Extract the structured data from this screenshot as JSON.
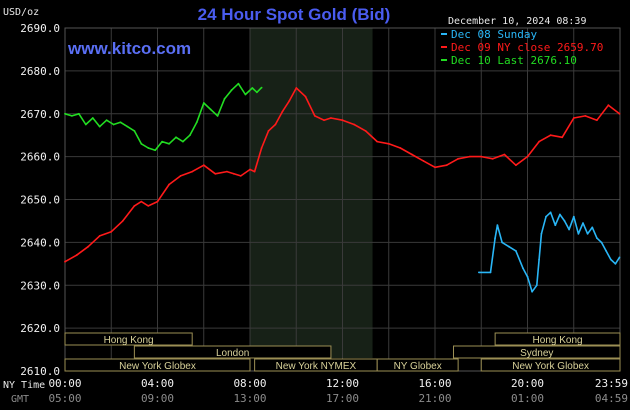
{
  "header": {
    "title": "24 Hour Spot Gold (Bid)",
    "unit": "USD/oz",
    "timestamp": "December 10, 2024 08:39",
    "brand": "www.kitco.com"
  },
  "axis": {
    "nytime_label": "NY Time",
    "gmt_label": "GMT"
  },
  "sessions": [
    {
      "name": "Hong Kong",
      "start": 0.0,
      "end": 5.5,
      "row": 0
    },
    {
      "name": "Hong Kong",
      "start": 18.6,
      "end": 24.0,
      "row": 0
    },
    {
      "name": "London",
      "start": 3.0,
      "end": 11.5,
      "row": 1
    },
    {
      "name": "Sydney",
      "start": 16.8,
      "end": 24.0,
      "row": 1
    },
    {
      "name": "New York Globex",
      "start": 0.0,
      "end": 8.0,
      "row": 2
    },
    {
      "name": "New York NYMEX",
      "start": 8.2,
      "end": 13.5,
      "row": 2
    },
    {
      "name": "NY Globex",
      "start": 13.5,
      "end": 17.0,
      "row": 2
    },
    {
      "name": "New York Globex",
      "start": 18.0,
      "end": 24.0,
      "row": 2
    }
  ],
  "chart_data": {
    "type": "line",
    "ylim": [
      2610,
      2690
    ],
    "yticks": [
      "2690.0",
      "2680.0",
      "2670.0",
      "2660.0",
      "2650.0",
      "2640.0",
      "2630.0",
      "2620.0",
      "2610.0"
    ],
    "ytick_values": [
      2690,
      2680,
      2670,
      2660,
      2650,
      2640,
      2630,
      2620,
      2610
    ],
    "xlim": [
      0,
      24
    ],
    "xticks": [
      "00:00",
      "04:00",
      "08:00",
      "12:00",
      "16:00",
      "20:00",
      "23:59"
    ],
    "xtick_values": [
      0,
      4,
      8,
      12,
      16,
      20,
      23.98
    ],
    "gmt_ticks": [
      "05:00",
      "09:00",
      "13:00",
      "17:00",
      "21:00",
      "01:00",
      "04:59"
    ],
    "shaded_range": [
      8.0,
      13.3
    ],
    "grid": true,
    "legend_position": "top-right",
    "series": [
      {
        "name": "Dec 08 Sunday",
        "color": "#29b6f6",
        "x": [
          17.9,
          18.4,
          18.6,
          18.7,
          18.9,
          19.2,
          19.5,
          19.8,
          20.0,
          20.2,
          20.4,
          20.5,
          20.6,
          20.8,
          21.0,
          21.2,
          21.4,
          21.6,
          21.8,
          22.0,
          22.2,
          22.4,
          22.6,
          22.8,
          23.0,
          23.2,
          23.4,
          23.6,
          23.8,
          23.98
        ],
        "y": [
          2633.0,
          2633.0,
          2641.0,
          2644.0,
          2640.0,
          2639.0,
          2638.0,
          2634.0,
          2632.0,
          2628.5,
          2630.0,
          2636.0,
          2642.0,
          2646.0,
          2647.0,
          2644.0,
          2646.5,
          2645.0,
          2643.0,
          2646.0,
          2642.0,
          2644.5,
          2642.0,
          2643.5,
          2641.0,
          2640.0,
          2638.0,
          2636.0,
          2635.0,
          2636.5
        ]
      },
      {
        "name": "Dec 09 NY close 2659.70",
        "color": "#ff1a1a",
        "x": [
          0.0,
          0.5,
          1.0,
          1.5,
          2.0,
          2.5,
          3.0,
          3.3,
          3.6,
          4.0,
          4.5,
          5.0,
          5.5,
          6.0,
          6.5,
          7.0,
          7.3,
          7.6,
          8.0,
          8.2,
          8.5,
          8.8,
          9.1,
          9.4,
          9.7,
          10.0,
          10.4,
          10.8,
          11.2,
          11.5,
          12.0,
          12.5,
          13.0,
          13.5,
          14.0,
          14.5,
          15.0,
          15.5,
          16.0,
          16.5,
          17.0,
          17.5,
          18.0,
          18.5,
          19.0,
          19.5,
          20.0,
          20.5,
          21.0,
          21.5,
          22.0,
          22.5,
          23.0,
          23.5,
          23.98
        ],
        "y": [
          2635.5,
          2637.0,
          2639.0,
          2641.5,
          2642.5,
          2645.0,
          2648.5,
          2649.5,
          2648.5,
          2649.5,
          2653.5,
          2655.5,
          2656.5,
          2658.0,
          2656.0,
          2656.5,
          2656.0,
          2655.5,
          2657.0,
          2656.5,
          2662.0,
          2666.0,
          2667.5,
          2670.5,
          2673.0,
          2676.0,
          2674.0,
          2669.5,
          2668.5,
          2669.0,
          2668.5,
          2667.5,
          2666.0,
          2663.5,
          2663.0,
          2662.0,
          2660.5,
          2659.0,
          2657.5,
          2658.0,
          2659.5,
          2660.0,
          2660.0,
          2659.5,
          2660.5,
          2658.0,
          2660.0,
          2663.5,
          2665.0,
          2664.5,
          2669.0,
          2669.5,
          2668.5,
          2672.0,
          2670.0
        ]
      },
      {
        "name": "Dec 10 Last 2676.10",
        "color": "#22dd22",
        "x": [
          0.0,
          0.3,
          0.6,
          0.9,
          1.2,
          1.5,
          1.8,
          2.1,
          2.4,
          2.7,
          3.0,
          3.3,
          3.6,
          3.9,
          4.2,
          4.5,
          4.8,
          5.1,
          5.4,
          5.7,
          6.0,
          6.3,
          6.6,
          6.9,
          7.2,
          7.5,
          7.8,
          8.1,
          8.3,
          8.5
        ],
        "y": [
          2670.0,
          2669.5,
          2670.0,
          2667.5,
          2669.0,
          2667.0,
          2668.5,
          2667.5,
          2668.0,
          2667.0,
          2666.0,
          2663.0,
          2662.0,
          2661.5,
          2663.5,
          2663.0,
          2664.5,
          2663.5,
          2665.0,
          2668.0,
          2672.5,
          2671.0,
          2669.5,
          2673.5,
          2675.5,
          2677.0,
          2674.5,
          2676.0,
          2675.0,
          2676.1
        ]
      }
    ]
  }
}
